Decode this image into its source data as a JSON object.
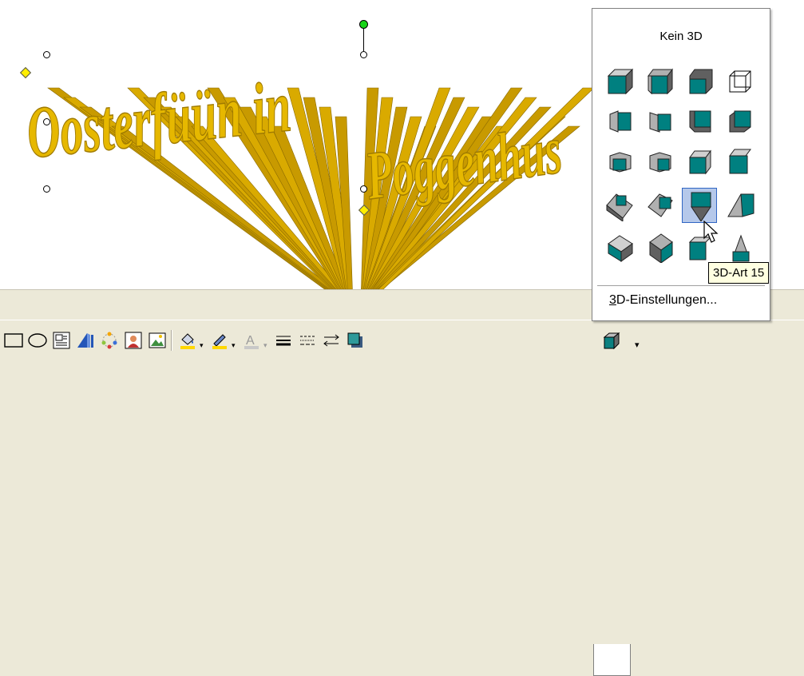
{
  "wordart": {
    "text": "Oosterfüün in Poggenhus",
    "color": "#e2b400",
    "shade": "#9e7a00"
  },
  "menu": {
    "title": "Kein 3D",
    "command_prefix": "3",
    "command_rest": "D-Einstellungen...",
    "grid_icons": [
      [
        "3d-style-1-icon",
        "3d-style-2-icon",
        "3d-style-3-icon",
        "3d-style-4-icon"
      ],
      [
        "3d-style-5-icon",
        "3d-style-6-icon",
        "3d-style-7-icon",
        "3d-style-8-icon"
      ],
      [
        "3d-style-9-icon",
        "3d-style-10-icon",
        "3d-style-11-icon",
        "3d-style-12-icon"
      ],
      [
        "3d-style-13-icon",
        "3d-style-14-icon",
        "3d-style-15-icon",
        "3d-style-16-icon"
      ],
      [
        "3d-style-17-icon",
        "3d-style-18-icon",
        "3d-style-19-icon",
        "3d-style-20-icon"
      ]
    ],
    "selected": "3d-style-15-icon"
  },
  "tooltip": {
    "text": "3D-Art 15"
  },
  "colors": {
    "face": "#008080",
    "face_light": "#20b2aa",
    "side": "#606060",
    "side_light": "#b0b0b0",
    "toolbar": "#ece9d8"
  },
  "toolbar": {
    "icons": [
      "rectangle-icon",
      "oval-icon",
      "text-box-icon",
      "wordart-icon",
      "diagram-icon",
      "clip-art-icon",
      "picture-icon",
      "fill-color-icon",
      "line-color-icon",
      "font-color-icon",
      "line-style-icon",
      "dash-style-icon",
      "arrow-style-icon",
      "shadow-style-icon",
      "3d-style-icon"
    ]
  }
}
